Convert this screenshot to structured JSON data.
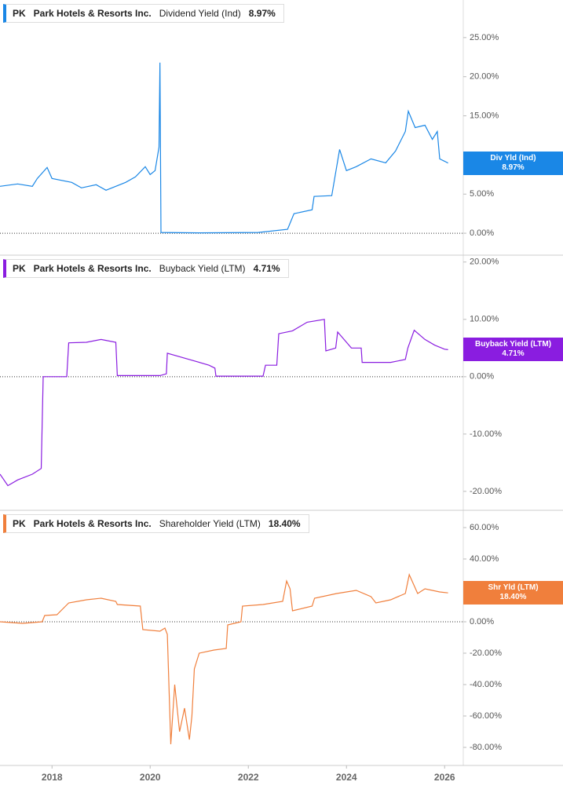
{
  "chart_data": [
    {
      "type": "line",
      "ticker": "PK",
      "company": "Park Hotels & Resorts Inc.",
      "metric": "Dividend Yield (Ind)",
      "current": "8.97%",
      "badge_label": "Div Yld (Ind)",
      "badge_value": "8.97%",
      "xlim": [
        2016.94,
        2026.38
      ],
      "ylim": [
        -2.8,
        29.8
      ],
      "yticks": [
        {
          "value": 0,
          "label": "0.00%"
        },
        {
          "value": 5,
          "label": "5.00%"
        },
        {
          "value": 10,
          "label": "10.00%"
        },
        {
          "value": 15,
          "label": "15.00%"
        },
        {
          "value": 20,
          "label": "20.00%"
        },
        {
          "value": 25,
          "label": "25.00%"
        }
      ],
      "series": [
        {
          "name": "Dividend Yield (Ind)",
          "color": "#1a87e6",
          "x": [
            2016.94,
            2017.3,
            2017.6,
            2017.7,
            2017.9,
            2018.0,
            2018.4,
            2018.6,
            2018.9,
            2019.1,
            2019.5,
            2019.7,
            2019.9,
            2020.0,
            2020.1,
            2020.18,
            2020.2,
            2020.22,
            2021.0,
            2022.2,
            2022.8,
            2022.93,
            2023.3,
            2023.34,
            2023.7,
            2023.86,
            2024.0,
            2024.2,
            2024.5,
            2024.8,
            2025.0,
            2025.2,
            2025.26,
            2025.4,
            2025.6,
            2025.75,
            2025.85,
            2025.9,
            2026.0,
            2026.07
          ],
          "values": [
            6,
            6.3,
            6.0,
            7.0,
            8.4,
            7.0,
            6.5,
            5.8,
            6.2,
            5.5,
            6.5,
            7.2,
            8.5,
            7.5,
            8.0,
            11,
            21.8,
            0.1,
            0.05,
            0.1,
            0.5,
            2.5,
            3.0,
            4.7,
            4.8,
            10.7,
            8.0,
            8.5,
            9.5,
            9.0,
            10.5,
            13,
            15.6,
            13.5,
            13.8,
            12.0,
            13,
            9.5,
            9.2,
            8.97
          ]
        }
      ]
    },
    {
      "type": "line",
      "ticker": "PK",
      "company": "Park Hotels & Resorts Inc.",
      "metric": "Buyback Yield (LTM)",
      "current": "4.71%",
      "badge_label": "Buyback Yield (LTM)",
      "badge_value": "4.71%",
      "xlim": [
        2016.94,
        2026.38
      ],
      "ylim": [
        -23.3,
        21.2
      ],
      "yticks": [
        {
          "value": -20,
          "label": "-20.00%"
        },
        {
          "value": -10,
          "label": "-10.00%"
        },
        {
          "value": 0,
          "label": "0.00%"
        },
        {
          "value": 10,
          "label": "10.00%"
        },
        {
          "value": 20,
          "label": "20.00%"
        }
      ],
      "series": [
        {
          "name": "Buyback Yield (LTM)",
          "color": "#8a1de0",
          "x": [
            2016.94,
            2017.1,
            2017.3,
            2017.6,
            2017.78,
            2017.82,
            2018.3,
            2018.34,
            2018.7,
            2019.0,
            2019.3,
            2019.33,
            2020.2,
            2020.33,
            2020.35,
            2020.8,
            2021.2,
            2021.32,
            2021.34,
            2022.3,
            2022.35,
            2022.58,
            2022.62,
            2022.9,
            2023.2,
            2023.55,
            2023.58,
            2023.78,
            2023.82,
            2024.1,
            2024.3,
            2024.32,
            2024.9,
            2025.2,
            2025.25,
            2025.38,
            2025.6,
            2025.8,
            2026.0,
            2026.07
          ],
          "values": [
            -17,
            -19,
            -18,
            -17,
            -16,
            0,
            0,
            5.9,
            6,
            6.5,
            6,
            0.2,
            0.2,
            0.5,
            4.1,
            3,
            2,
            1.5,
            0.1,
            0.1,
            2,
            2,
            7.5,
            8,
            9.5,
            10,
            4.5,
            5,
            7.8,
            5,
            5,
            2.5,
            2.5,
            3,
            5,
            8.1,
            6.5,
            5.5,
            4.8,
            4.71
          ]
        }
      ]
    },
    {
      "type": "line",
      "ticker": "PK",
      "company": "Park Hotels & Resorts Inc.",
      "metric": "Shareholder Yield (LTM)",
      "current": "18.40%",
      "badge_label": "Shr Yld (LTM)",
      "badge_value": "18.40%",
      "xlim": [
        2016.94,
        2026.38
      ],
      "ylim": [
        -91.5,
        71
      ],
      "xticks": [
        2018,
        2020,
        2022,
        2024,
        2026
      ],
      "yticks": [
        {
          "value": -80,
          "label": "-80.00%"
        },
        {
          "value": -60,
          "label": "-60.00%"
        },
        {
          "value": -40,
          "label": "-40.00%"
        },
        {
          "value": -20,
          "label": "-20.00%"
        },
        {
          "value": 0,
          "label": "0.00%"
        },
        {
          "value": 20,
          "label": "20.00%"
        },
        {
          "value": 40,
          "label": "40.00%"
        },
        {
          "value": 60,
          "label": "60.00%"
        }
      ],
      "series": [
        {
          "name": "Shareholder Yield (LTM)",
          "color": "#f07f3c",
          "x": [
            2016.94,
            2017.4,
            2017.8,
            2017.85,
            2018.1,
            2018.34,
            2018.7,
            2019.0,
            2019.3,
            2019.33,
            2019.8,
            2019.85,
            2020.2,
            2020.3,
            2020.35,
            2020.42,
            2020.5,
            2020.6,
            2020.7,
            2020.8,
            2020.85,
            2020.9,
            2021.0,
            2021.3,
            2021.55,
            2021.58,
            2021.85,
            2021.88,
            2022.3,
            2022.7,
            2022.78,
            2022.85,
            2022.9,
            2023.3,
            2023.35,
            2023.8,
            2024.2,
            2024.5,
            2024.6,
            2024.9,
            2025.2,
            2025.28,
            2025.45,
            2025.6,
            2025.9,
            2026.07
          ],
          "values": [
            0,
            -1,
            0,
            4,
            4.5,
            12,
            14,
            15,
            13,
            11,
            10,
            -5,
            -6,
            -4,
            -8,
            -78,
            -40,
            -70,
            -55,
            -75,
            -60,
            -30,
            -20,
            -18,
            -17,
            -2,
            0,
            10,
            11,
            13,
            26,
            21,
            7,
            10,
            15,
            18,
            20,
            16,
            12,
            14,
            18,
            30,
            18,
            21,
            19,
            18.4
          ]
        }
      ]
    }
  ]
}
